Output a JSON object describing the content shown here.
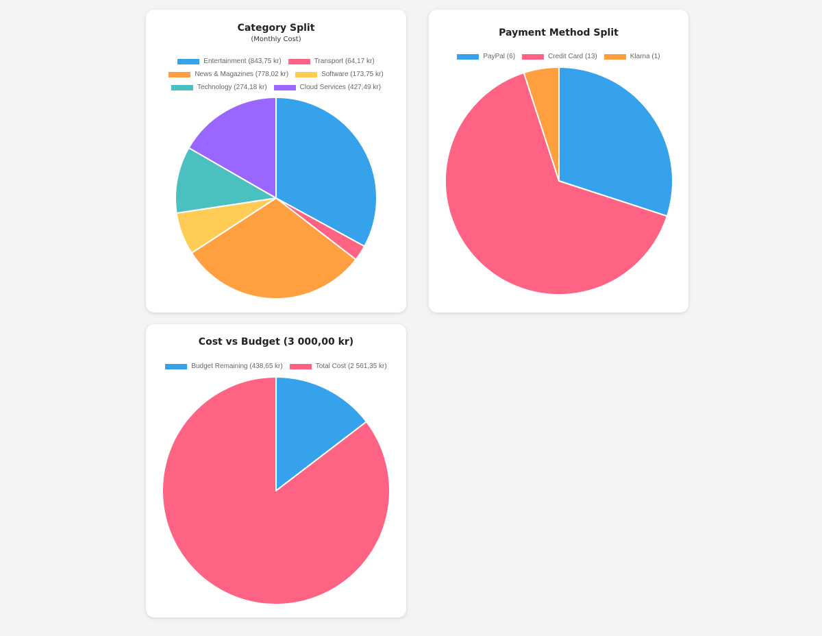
{
  "colors": {
    "blue": "#36a2eb",
    "red": "#ff6384",
    "orange": "#ff9f40",
    "yellow": "#ffcd56",
    "teal": "#4bc0c0",
    "purple": "#9966ff"
  },
  "chart_data": [
    {
      "type": "pie",
      "title": "Category Split",
      "subtitle": "(Monthly Cost)",
      "slices": [
        {
          "label": "Entertainment (843,75 kr)",
          "value": 843.75,
          "color": "#36a2eb"
        },
        {
          "label": "Transport (64,17 kr)",
          "value": 64.17,
          "color": "#ff6384"
        },
        {
          "label": "News & Magazines (778,02 kr)",
          "value": 778.02,
          "color": "#ff9f40"
        },
        {
          "label": "Software (173,75 kr)",
          "value": 173.75,
          "color": "#ffcd56"
        },
        {
          "label": "Technology (274,18 kr)",
          "value": 274.18,
          "color": "#4bc0c0"
        },
        {
          "label": "Cloud Services (427,49 kr)",
          "value": 427.49,
          "color": "#9966ff"
        }
      ],
      "legend_position": "top"
    },
    {
      "type": "pie",
      "title": "Payment Method Split",
      "slices": [
        {
          "label": "PayPal (6)",
          "value": 6,
          "color": "#36a2eb"
        },
        {
          "label": "Credit Card (13)",
          "value": 13,
          "color": "#ff6384"
        },
        {
          "label": "Klarna (1)",
          "value": 1,
          "color": "#ff9f40"
        }
      ],
      "legend_position": "top"
    },
    {
      "type": "pie",
      "title": "Cost vs Budget (3 000,00 kr)",
      "slices": [
        {
          "label": "Budget Remaining (438,65 kr)",
          "value": 438.65,
          "color": "#36a2eb"
        },
        {
          "label": "Total Cost (2 561,35 kr)",
          "value": 2561.35,
          "color": "#ff6384"
        }
      ],
      "legend_position": "top"
    }
  ]
}
